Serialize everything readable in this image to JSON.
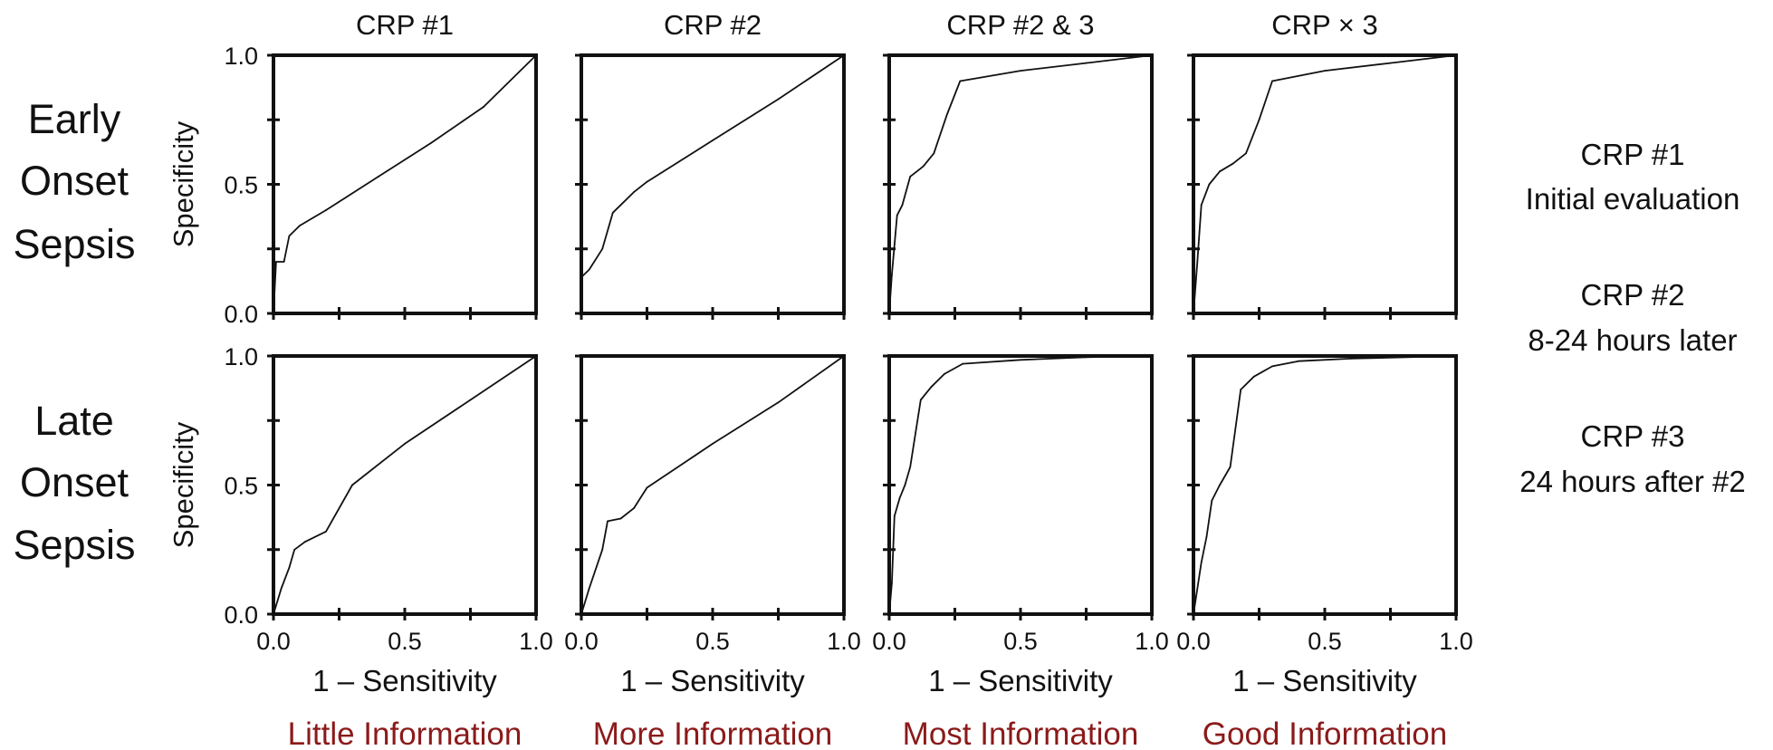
{
  "colors": {
    "ink": "#111111",
    "info": "#8b1a1a"
  },
  "row_labels": [
    [
      "Early",
      "Onset",
      "Sepsis"
    ],
    [
      "Late",
      "Onset",
      "Sepsis"
    ]
  ],
  "legend": [
    {
      "title": "CRP #1",
      "desc": "Initial evaluation"
    },
    {
      "title": "CRP #2",
      "desc": "8-24 hours later"
    },
    {
      "title": "CRP #3",
      "desc": "24 hours after #2"
    }
  ],
  "info_labels": [
    "Little Information",
    "More Information",
    "Most Information",
    "Good Information"
  ],
  "chart_data": [
    {
      "type": "line",
      "title": "CRP #1",
      "row": "Early Onset Sepsis",
      "xlabel": "",
      "ylabel": "Specificity",
      "xlim": [
        0,
        1
      ],
      "ylim": [
        0,
        1
      ],
      "x": [
        0,
        0.01,
        0.04,
        0.06,
        0.1,
        0.2,
        0.4,
        0.6,
        0.8,
        1.0
      ],
      "y": [
        0,
        0.2,
        0.2,
        0.3,
        0.34,
        0.4,
        0.53,
        0.66,
        0.8,
        1.0
      ]
    },
    {
      "type": "line",
      "title": "CRP #2",
      "row": "Early Onset Sepsis",
      "xlabel": "",
      "ylabel": "",
      "xlim": [
        0,
        1
      ],
      "ylim": [
        0,
        1
      ],
      "x": [
        0,
        0.03,
        0.08,
        0.12,
        0.2,
        0.25,
        0.5,
        0.75,
        1.0
      ],
      "y": [
        0.14,
        0.17,
        0.25,
        0.39,
        0.47,
        0.51,
        0.67,
        0.83,
        1.0
      ]
    },
    {
      "type": "line",
      "title": "CRP #2 & 3",
      "row": "Early Onset Sepsis",
      "xlabel": "",
      "ylabel": "",
      "xlim": [
        0,
        1
      ],
      "ylim": [
        0,
        1
      ],
      "x": [
        0,
        0.01,
        0.03,
        0.05,
        0.08,
        0.13,
        0.17,
        0.22,
        0.27,
        0.5,
        0.75,
        1.0
      ],
      "y": [
        0,
        0.15,
        0.38,
        0.42,
        0.53,
        0.57,
        0.62,
        0.77,
        0.9,
        0.94,
        0.97,
        1.0
      ]
    },
    {
      "type": "line",
      "title": "CRP × 3",
      "row": "Early Onset Sepsis",
      "xlabel": "",
      "ylabel": "",
      "xlim": [
        0,
        1
      ],
      "ylim": [
        0,
        1
      ],
      "x": [
        0,
        0.015,
        0.03,
        0.06,
        0.1,
        0.15,
        0.2,
        0.25,
        0.3,
        0.5,
        0.75,
        1.0
      ],
      "y": [
        0,
        0.2,
        0.42,
        0.5,
        0.55,
        0.58,
        0.62,
        0.75,
        0.9,
        0.94,
        0.97,
        1.0
      ]
    },
    {
      "type": "line",
      "title": "",
      "row": "Late Onset Sepsis",
      "xlabel": "1 – Sensitivity",
      "ylabel": "Specificity",
      "xlim": [
        0,
        1
      ],
      "ylim": [
        0,
        1
      ],
      "x": [
        0,
        0.03,
        0.06,
        0.08,
        0.12,
        0.2,
        0.3,
        0.5,
        0.75,
        1.0
      ],
      "y": [
        0,
        0.1,
        0.18,
        0.25,
        0.28,
        0.32,
        0.5,
        0.66,
        0.83,
        1.0
      ]
    },
    {
      "type": "line",
      "title": "",
      "row": "Late Onset Sepsis",
      "xlabel": "1 – Sensitivity",
      "ylabel": "",
      "xlim": [
        0,
        1
      ],
      "ylim": [
        0,
        1
      ],
      "x": [
        0,
        0.03,
        0.08,
        0.1,
        0.15,
        0.2,
        0.25,
        0.5,
        0.75,
        1.0
      ],
      "y": [
        0,
        0.1,
        0.25,
        0.36,
        0.37,
        0.41,
        0.49,
        0.66,
        0.82,
        1.0
      ]
    },
    {
      "type": "line",
      "title": "",
      "row": "Late Onset Sepsis",
      "xlabel": "1 – Sensitivity",
      "ylabel": "",
      "xlim": [
        0,
        1
      ],
      "ylim": [
        0,
        1
      ],
      "x": [
        0,
        0.01,
        0.02,
        0.04,
        0.06,
        0.08,
        0.12,
        0.16,
        0.21,
        0.28,
        0.5,
        0.75,
        1.0
      ],
      "y": [
        0,
        0.12,
        0.38,
        0.45,
        0.5,
        0.57,
        0.83,
        0.88,
        0.93,
        0.97,
        0.985,
        0.995,
        1.0
      ]
    },
    {
      "type": "line",
      "title": "",
      "row": "Late Onset Sepsis",
      "xlabel": "1 – Sensitivity",
      "ylabel": "",
      "xlim": [
        0,
        1
      ],
      "ylim": [
        0,
        1
      ],
      "x": [
        0,
        0.03,
        0.05,
        0.07,
        0.1,
        0.14,
        0.18,
        0.23,
        0.3,
        0.4,
        0.6,
        1.0
      ],
      "y": [
        0,
        0.2,
        0.3,
        0.44,
        0.5,
        0.57,
        0.87,
        0.92,
        0.96,
        0.98,
        0.99,
        1.0
      ]
    }
  ]
}
